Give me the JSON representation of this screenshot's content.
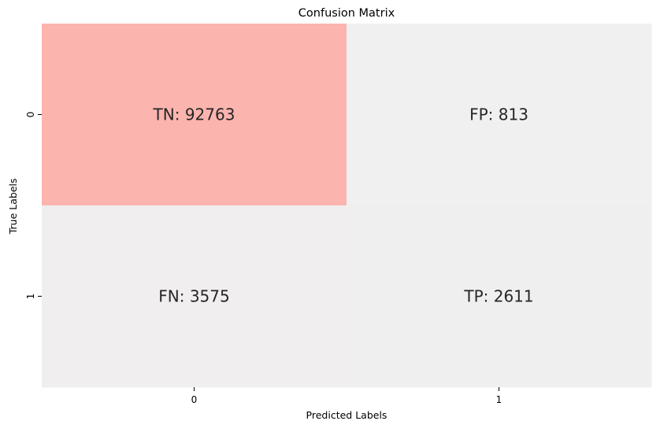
{
  "chart_data": {
    "type": "heatmap",
    "title": "Confusion Matrix",
    "xlabel": "Predicted Labels",
    "ylabel": "True Labels",
    "x_ticks": [
      "0",
      "1"
    ],
    "y_ticks": [
      "0",
      "1"
    ],
    "values": [
      [
        92763,
        813
      ],
      [
        3575,
        2611
      ]
    ],
    "annotations": [
      [
        "TN: 92763",
        "FP: 813"
      ],
      [
        "FN: 3575",
        "TP: 2611"
      ]
    ],
    "colormap": {
      "low": "#f0f0f0",
      "high": "#fbb4ae"
    },
    "colorbar": false,
    "grid": false
  }
}
